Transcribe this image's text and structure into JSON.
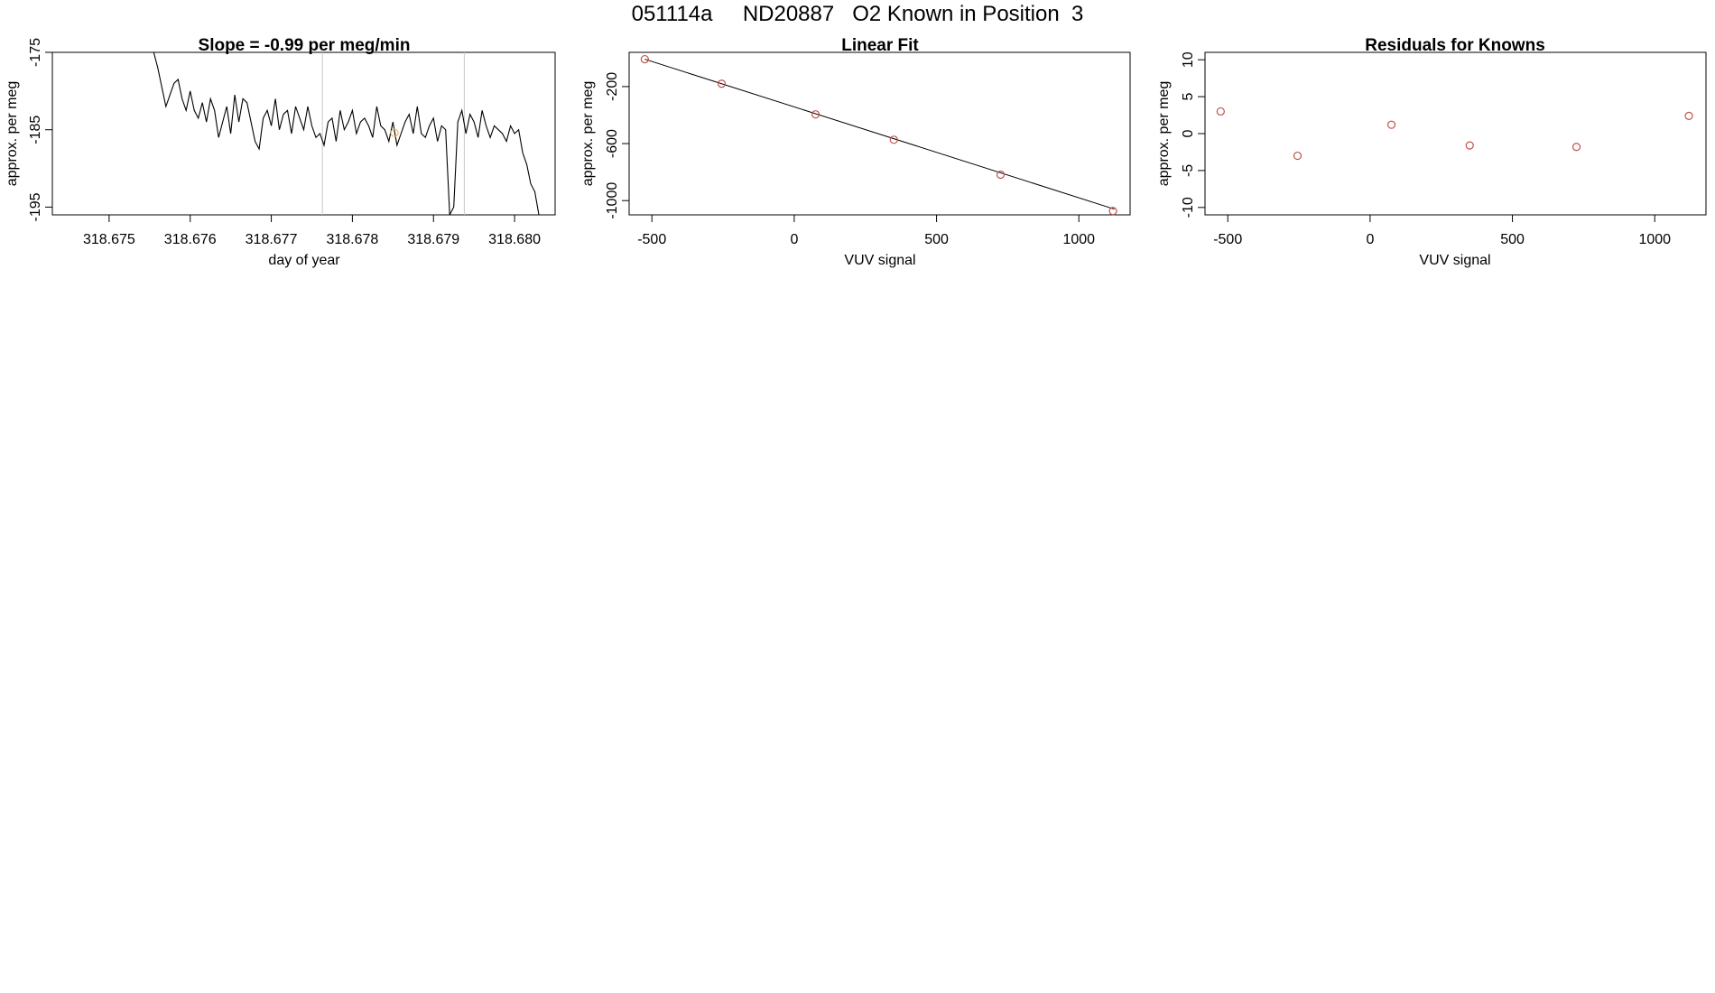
{
  "page": {
    "title": "051114a     ND20887   O2 Known in Position  3"
  },
  "chart_data": [
    {
      "type": "line",
      "title": "Slope =  -0.99  per meg/min",
      "xlabel": "day of year",
      "ylabel": "approx. per meg",
      "xlim": [
        318.6743,
        318.6805
      ],
      "ylim": [
        -196,
        -175
      ],
      "xticks": [
        "318.675",
        "318.676",
        "318.677",
        "318.678",
        "318.679",
        "318.680"
      ],
      "yticks": [
        "-175",
        "-185",
        "-195"
      ],
      "vlines": [
        318.67763,
        318.67938
      ],
      "highlight_point": {
        "x": 318.67852,
        "y": -185.4,
        "color": "#f0c060"
      },
      "series": [
        {
          "color": "#000000",
          "x": [
            318.67555,
            318.6756,
            318.67565,
            318.6757,
            318.67575,
            318.6758,
            318.67585,
            318.6759,
            318.67595,
            318.676,
            318.67605,
            318.6761,
            318.67615,
            318.6762,
            318.67625,
            318.6763,
            318.67635,
            318.6764,
            318.67645,
            318.6765,
            318.67655,
            318.6766,
            318.67665,
            318.6767,
            318.67675,
            318.6768,
            318.67685,
            318.6769,
            318.67695,
            318.677,
            318.67705,
            318.6771,
            318.67715,
            318.6772,
            318.67725,
            318.6773,
            318.67735,
            318.6774,
            318.67745,
            318.6775,
            318.67755,
            318.6776,
            318.67765,
            318.6777,
            318.67775,
            318.6778,
            318.67785,
            318.6779,
            318.67795,
            318.678,
            318.67805,
            318.6781,
            318.67815,
            318.6782,
            318.67825,
            318.6783,
            318.67835,
            318.6784,
            318.67845,
            318.6785,
            318.67855,
            318.6786,
            318.67865,
            318.6787,
            318.67875,
            318.6788,
            318.67885,
            318.6789,
            318.67895,
            318.679,
            318.67905,
            318.6791,
            318.67915,
            318.6792,
            318.67925,
            318.6793,
            318.67935,
            318.6794,
            318.67945,
            318.6795,
            318.67955,
            318.6796,
            318.67965,
            318.6797,
            318.67975,
            318.6798,
            318.67985,
            318.6799,
            318.67995,
            318.68,
            318.68005,
            318.6801,
            318.68015,
            318.6802,
            318.68025,
            318.6803
          ],
          "y": [
            -175.0,
            -177.0,
            -179.5,
            -182.0,
            -180.5,
            -179.0,
            -178.5,
            -181.0,
            -182.5,
            -180.0,
            -182.5,
            -183.5,
            -181.5,
            -184.0,
            -181.0,
            -182.5,
            -186.0,
            -184.0,
            -182.0,
            -185.5,
            -180.5,
            -184.0,
            -181.0,
            -181.5,
            -184.0,
            -186.5,
            -187.5,
            -183.5,
            -182.5,
            -184.5,
            -181.0,
            -185.0,
            -183.0,
            -182.5,
            -185.5,
            -182.0,
            -183.5,
            -185.0,
            -182.0,
            -184.5,
            -186.0,
            -185.5,
            -187.0,
            -184.0,
            -183.5,
            -186.5,
            -182.5,
            -185.0,
            -184.0,
            -182.5,
            -185.5,
            -184.0,
            -183.5,
            -184.5,
            -186.0,
            -182.0,
            -184.5,
            -185.0,
            -186.5,
            -184.0,
            -187.0,
            -185.5,
            -184.0,
            -183.0,
            -185.5,
            -182.0,
            -185.5,
            -186.0,
            -184.5,
            -183.5,
            -186.5,
            -184.5,
            -185.0,
            -196.0,
            -195.0,
            -184.0,
            -182.5,
            -185.5,
            -183.0,
            -184.0,
            -186.0,
            -182.5,
            -184.5,
            -186.0,
            -184.5,
            -185.0,
            -185.5,
            -186.5,
            -184.5,
            -185.5,
            -185.0,
            -188.0,
            -189.5,
            -192.0,
            -193.0,
            -196.0
          ]
        }
      ]
    },
    {
      "type": "scatter",
      "title": "Linear Fit",
      "xlabel": "VUV signal",
      "ylabel": "approx. per meg",
      "xlim": [
        -580,
        1180
      ],
      "ylim": [
        -1100,
        40
      ],
      "xticks": [
        "-500",
        "0",
        "500",
        "1000"
      ],
      "yticks": [
        "-200",
        "-600",
        "-1000"
      ],
      "fit_line": {
        "x": [
          -525,
          1125
        ],
        "y": [
          -8,
          -1060
        ]
      },
      "points": {
        "color": "#c0504d",
        "x": [
          -525,
          -255,
          75,
          350,
          725,
          1120
        ],
        "y": [
          -8,
          -180,
          -395,
          -573,
          -818,
          -1073
        ]
      }
    },
    {
      "type": "scatter",
      "title": "Residuals for Knowns",
      "xlabel": "VUV signal",
      "ylabel": "approx. per meg",
      "xlim": [
        -580,
        1180
      ],
      "ylim": [
        -11,
        11
      ],
      "xticks": [
        "-500",
        "0",
        "500",
        "1000"
      ],
      "yticks": [
        "10",
        "5",
        "0",
        "-5",
        "-10"
      ],
      "points": {
        "color": "#c0504d",
        "x": [
          -525,
          -255,
          75,
          350,
          725,
          1120
        ],
        "y": [
          3.0,
          -3.0,
          1.2,
          -1.6,
          -1.8,
          2.4
        ]
      }
    }
  ]
}
